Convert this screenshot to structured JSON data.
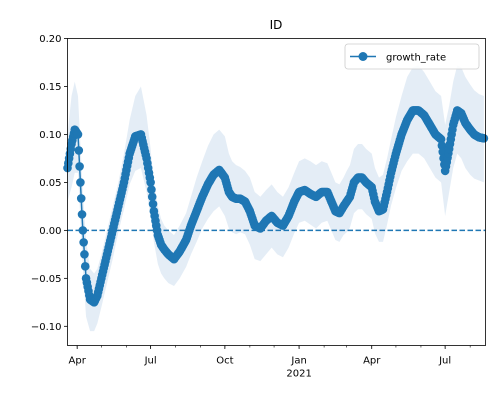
{
  "chart_data": {
    "type": "line",
    "title": "ID",
    "xlabel": "",
    "ylabel": "",
    "x_range": [
      "2020-03-20",
      "2021-08-20"
    ],
    "ylim": [
      -0.12,
      0.2
    ],
    "y_ticks": [
      -0.1,
      -0.05,
      0.0,
      0.05,
      0.1,
      0.15,
      0.2
    ],
    "y_tick_labels": [
      "−0.10",
      "−0.05",
      "0.00",
      "0.05",
      "0.10",
      "0.15",
      "0.20"
    ],
    "x_ticks": [
      {
        "date": "2020-04-01",
        "label": "Apr"
      },
      {
        "date": "2020-07-01",
        "label": "Jul"
      },
      {
        "date": "2020-10-01",
        "label": "Oct"
      },
      {
        "date": "2021-01-01",
        "label": "Jan",
        "sublabel": "2021"
      },
      {
        "date": "2021-04-01",
        "label": "Apr"
      },
      {
        "date": "2021-07-01",
        "label": "Jul"
      }
    ],
    "reference_line": {
      "y": 0,
      "style": "dashed"
    },
    "legend": {
      "position": "top-right",
      "entries": [
        "growth_rate"
      ]
    },
    "colors": {
      "series": "#1f77b4",
      "band": "#dbe7f3"
    },
    "series": [
      {
        "name": "growth_rate",
        "x": [
          "2020-03-20",
          "2020-03-25",
          "2020-03-29",
          "2020-04-02",
          "2020-04-05",
          "2020-04-08",
          "2020-04-12",
          "2020-04-17",
          "2020-04-22",
          "2020-04-26",
          "2020-05-01",
          "2020-05-08",
          "2020-05-15",
          "2020-05-22",
          "2020-05-29",
          "2020-06-05",
          "2020-06-12",
          "2020-06-19",
          "2020-06-26",
          "2020-07-01",
          "2020-07-05",
          "2020-07-10",
          "2020-07-14",
          "2020-07-18",
          "2020-07-23",
          "2020-07-30",
          "2020-08-06",
          "2020-08-14",
          "2020-08-20",
          "2020-08-27",
          "2020-09-03",
          "2020-09-10",
          "2020-09-17",
          "2020-09-24",
          "2020-10-01",
          "2020-10-06",
          "2020-10-10",
          "2020-10-15",
          "2020-10-20",
          "2020-10-26",
          "2020-11-01",
          "2020-11-07",
          "2020-11-14",
          "2020-11-21",
          "2020-11-28",
          "2020-12-05",
          "2020-12-12",
          "2020-12-19",
          "2020-12-26",
          "2021-01-01",
          "2021-01-08",
          "2021-01-15",
          "2021-01-22",
          "2021-01-29",
          "2021-02-05",
          "2021-02-10",
          "2021-02-15",
          "2021-02-20",
          "2021-02-25",
          "2021-03-01",
          "2021-03-05",
          "2021-03-10",
          "2021-03-15",
          "2021-03-20",
          "2021-03-25",
          "2021-04-01",
          "2021-04-05",
          "2021-04-10",
          "2021-04-15",
          "2021-04-20",
          "2021-04-25",
          "2021-05-01",
          "2021-05-08",
          "2021-05-15",
          "2021-05-22",
          "2021-05-29",
          "2021-06-05",
          "2021-06-12",
          "2021-06-19",
          "2021-06-26",
          "2021-07-01",
          "2021-07-06",
          "2021-07-11",
          "2021-07-16",
          "2021-07-21",
          "2021-07-26",
          "2021-08-01",
          "2021-08-06",
          "2021-08-12",
          "2021-08-18"
        ],
        "y": [
          0.065,
          0.09,
          0.105,
          0.1,
          0.05,
          0.0,
          -0.05,
          -0.072,
          -0.075,
          -0.068,
          -0.05,
          -0.025,
          0.0,
          0.025,
          0.05,
          0.08,
          0.098,
          0.1,
          0.075,
          0.05,
          0.02,
          -0.005,
          -0.015,
          -0.02,
          -0.025,
          -0.03,
          -0.022,
          -0.01,
          0.005,
          0.02,
          0.035,
          0.048,
          0.058,
          0.063,
          0.055,
          0.04,
          0.035,
          0.033,
          0.033,
          0.03,
          0.02,
          0.005,
          0.002,
          0.01,
          0.015,
          0.008,
          0.005,
          0.015,
          0.03,
          0.04,
          0.042,
          0.038,
          0.035,
          0.04,
          0.04,
          0.03,
          0.02,
          0.018,
          0.025,
          0.03,
          0.035,
          0.05,
          0.055,
          0.055,
          0.05,
          0.045,
          0.03,
          0.02,
          0.022,
          0.04,
          0.06,
          0.08,
          0.1,
          0.115,
          0.125,
          0.125,
          0.12,
          0.11,
          0.1,
          0.095,
          0.062,
          0.085,
          0.11,
          0.125,
          0.122,
          0.112,
          0.105,
          0.1,
          0.097,
          0.096
        ],
        "band_upper": [
          0.1,
          0.14,
          0.155,
          0.14,
          0.09,
          0.04,
          -0.01,
          -0.04,
          -0.045,
          -0.04,
          -0.025,
          0.0,
          0.025,
          0.05,
          0.08,
          0.115,
          0.14,
          0.15,
          0.12,
          0.085,
          0.05,
          0.025,
          0.012,
          0.005,
          0.0,
          -0.005,
          0.005,
          0.018,
          0.035,
          0.055,
          0.072,
          0.088,
          0.1,
          0.105,
          0.098,
          0.08,
          0.072,
          0.068,
          0.066,
          0.062,
          0.055,
          0.04,
          0.035,
          0.042,
          0.048,
          0.04,
          0.035,
          0.045,
          0.06,
          0.072,
          0.075,
          0.072,
          0.068,
          0.072,
          0.07,
          0.06,
          0.05,
          0.048,
          0.055,
          0.062,
          0.068,
          0.085,
          0.09,
          0.09,
          0.085,
          0.08,
          0.065,
          0.055,
          0.058,
          0.075,
          0.095,
          0.118,
          0.14,
          0.16,
          0.17,
          0.172,
          0.165,
          0.155,
          0.145,
          0.14,
          0.11,
          0.13,
          0.155,
          0.172,
          0.17,
          0.16,
          0.152,
          0.146,
          0.142,
          0.14
        ],
        "band_lower": [
          0.03,
          0.045,
          0.06,
          0.06,
          0.01,
          -0.04,
          -0.09,
          -0.105,
          -0.105,
          -0.097,
          -0.08,
          -0.055,
          -0.03,
          -0.002,
          0.022,
          0.048,
          0.062,
          0.065,
          0.04,
          0.015,
          -0.012,
          -0.035,
          -0.045,
          -0.05,
          -0.055,
          -0.058,
          -0.05,
          -0.038,
          -0.025,
          -0.012,
          0.002,
          0.012,
          0.02,
          0.025,
          0.015,
          0.002,
          -0.002,
          -0.004,
          -0.002,
          -0.004,
          -0.015,
          -0.03,
          -0.032,
          -0.025,
          -0.018,
          -0.025,
          -0.028,
          -0.018,
          -0.003,
          0.008,
          0.01,
          0.006,
          0.002,
          0.008,
          0.01,
          0.0,
          -0.01,
          -0.012,
          -0.005,
          -0.002,
          0.003,
          0.018,
          0.022,
          0.022,
          0.017,
          0.012,
          -0.003,
          -0.012,
          -0.012,
          0.006,
          0.026,
          0.044,
          0.062,
          0.072,
          0.08,
          0.08,
          0.075,
          0.065,
          0.055,
          0.05,
          0.015,
          0.04,
          0.065,
          0.08,
          0.075,
          0.065,
          0.058,
          0.054,
          0.052,
          0.05
        ]
      }
    ]
  }
}
